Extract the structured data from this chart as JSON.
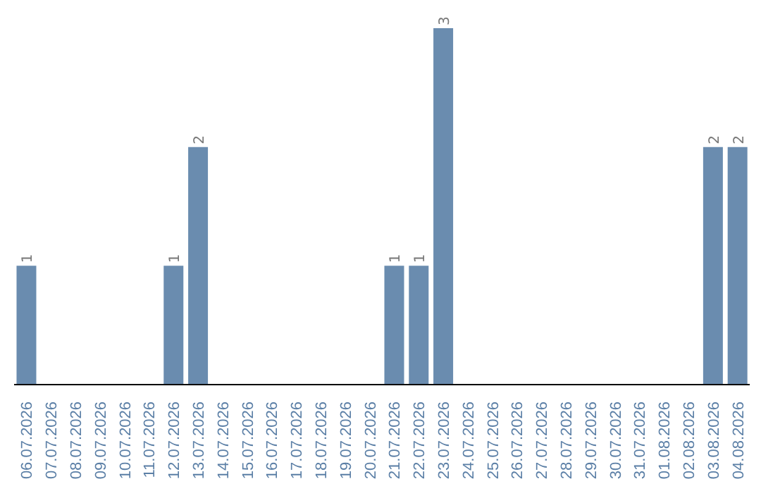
{
  "chart_data": {
    "type": "bar",
    "categories": [
      "06.07.2026",
      "07.07.2026",
      "08.07.2026",
      "09.07.2026",
      "10.07.2026",
      "11.07.2026",
      "12.07.2026",
      "13.07.2026",
      "14.07.2026",
      "15.07.2026",
      "16.07.2026",
      "17.07.2026",
      "18.07.2026",
      "19.07.2026",
      "20.07.2026",
      "21.07.2026",
      "22.07.2026",
      "23.07.2026",
      "24.07.2026",
      "25.07.2026",
      "26.07.2026",
      "27.07.2026",
      "28.07.2026",
      "29.07.2026",
      "30.07.2026",
      "31.07.2026",
      "01.08.2026",
      "02.08.2026",
      "03.08.2026",
      "04.08.2026"
    ],
    "values": [
      1,
      0,
      0,
      0,
      0,
      0,
      1,
      2,
      0,
      0,
      0,
      0,
      0,
      0,
      0,
      1,
      1,
      3,
      0,
      0,
      0,
      0,
      0,
      0,
      0,
      0,
      0,
      0,
      2,
      2
    ],
    "value_labels": [
      "1",
      null,
      null,
      null,
      null,
      null,
      "1",
      "2",
      null,
      null,
      null,
      null,
      null,
      null,
      null,
      "1",
      "1",
      "3",
      null,
      null,
      null,
      null,
      null,
      null,
      null,
      null,
      null,
      null,
      "2",
      "2"
    ],
    "color": "#6a8caf",
    "tick_labels": "x",
    "grid": false,
    "legend": false
  }
}
